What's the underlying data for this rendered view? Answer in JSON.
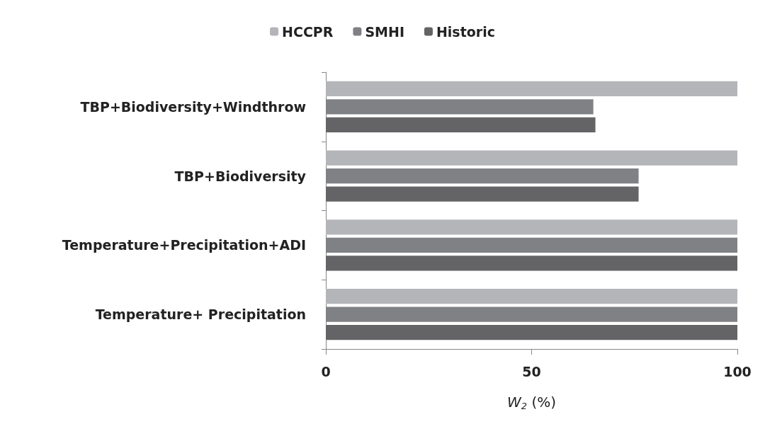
{
  "chart_data": {
    "type": "bar",
    "orientation": "horizontal",
    "xlabel": "W$_{2}$ (%)",
    "categories": [
      "TBP+Biodiversity+Windthrow",
      "TBP+Biodiversity",
      "Temperature+Precipitation+ADI",
      "Temperature+ Precipitation"
    ],
    "series": [
      {
        "name": "HCCPR",
        "color": "#b4b5b9",
        "values": [
          100,
          100,
          100,
          100
        ]
      },
      {
        "name": "SMHI",
        "color": "#808185",
        "values": [
          65,
          76,
          100,
          100
        ]
      },
      {
        "name": "Historic",
        "color": "#646466",
        "values": [
          65.5,
          76,
          100,
          100
        ]
      }
    ],
    "xlim": [
      0,
      100
    ],
    "xticks": [
      0,
      50,
      100
    ],
    "grid": false,
    "legend": "top"
  }
}
